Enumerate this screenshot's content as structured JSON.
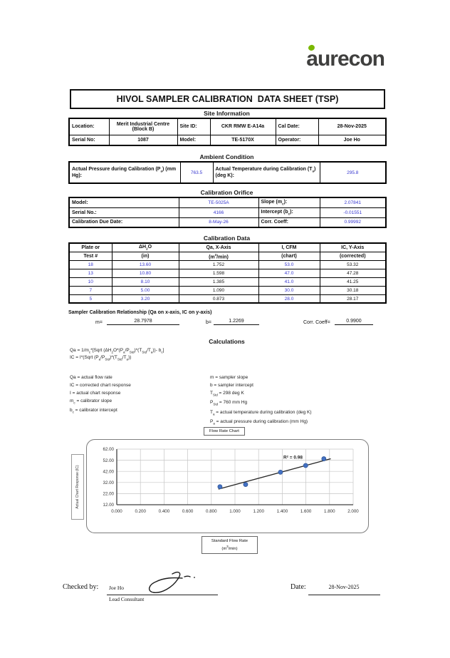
{
  "logo": {
    "text": "aurecon",
    "text_color": "#3f3f3e",
    "dot_color": "#7ab800"
  },
  "title": "HIVOL SAMPLER CALIBRATION  DATA SHEET (TSP)",
  "site_information": {
    "heading": "Site Information",
    "rows": [
      [
        "Location:",
        "Merit Industrial Centre (Block B)",
        "Site ID:",
        "CKR RMW E-A14a",
        "Cal Date:",
        "28-Nov-2025"
      ],
      [
        "Serial No:",
        "1087",
        "Model:",
        "TE-5170X",
        "Operator:",
        "Joe Ho"
      ]
    ]
  },
  "ambient_condition": {
    "heading": "Ambient Condition",
    "pressure_label_html": "Actual Pressure during Calibration (P<sub>a</sub>) (mm Hg):",
    "pressure_value": "763.5",
    "temperature_label_html": "Actual Temperature during Calibration (T<sub>a</sub>) (deg K):",
    "temperature_value": "295.8"
  },
  "calibration_orifice": {
    "heading": "Calibration Orifice",
    "rows": [
      {
        "label1": "Model:",
        "value1": "TE-5025A",
        "label2_html": "Slope (m<sub>c</sub>):",
        "value2": "2.07841"
      },
      {
        "label1": "Serial No.:",
        "value1": "4166",
        "label2_html": "Intercept (b<sub>c</sub>):",
        "value2": "-0.01551"
      },
      {
        "label1": "Calibration Due Date:",
        "value1": "8-May-26",
        "label2_html": "Corr. Coeff:",
        "value2": "0.99992"
      }
    ]
  },
  "calibration_data": {
    "heading": "Calibration Data",
    "header_line1_html": [
      "Plate or",
      "ΔH<sub>2</sub>O",
      "Qa, X-Axis",
      "I, CFM",
      "IC, Y-Axis"
    ],
    "header_line2_html": [
      "Test #",
      "(in)",
      "(m<sup>3</sup>/min)",
      "(chart)",
      "(corrected)"
    ],
    "rows": [
      [
        "18",
        "13.60",
        "1.752",
        "53.0",
        "53.32"
      ],
      [
        "13",
        "10.80",
        "1.598",
        "47.0",
        "47.28"
      ],
      [
        "10",
        "8.10",
        "1.385",
        "41.0",
        "41.25"
      ],
      [
        "7",
        "5.00",
        "1.090",
        "30.0",
        "30.18"
      ],
      [
        "5",
        "3.20",
        "0.873",
        "28.0",
        "28.17"
      ]
    ]
  },
  "relationship": {
    "heading": "Sampler Calibration Relationship (Qa on x-axis, IC on y-axis)",
    "m_label": "m=",
    "m_value": "28.7978",
    "b_label": "b=",
    "b_value": "1.2269",
    "cc_label": "Corr. Coeff=",
    "cc_value": "0.9900"
  },
  "calculations": {
    "heading": "Calculations",
    "formula1_html": "Qa = 1/m<sub>c</sub>*[Sqrt (ΔH<sub>2</sub>O*(P<sub>a</sub>/P<sub>Std</sub>)*(T<sub>Std</sub>/T<sub>a</sub>))- b<sub>c</sub>]",
    "formula2_html": "IC = I*(Sqrt (P<sub>a</sub>/P<sub>Std</sub>)*(T<sub>Std</sub>/T<sub>a</sub>))",
    "definitions_left_html": [
      "Qa = actual flow rate",
      "IC = corrected chart response",
      "I = actual chart response",
      "m<sub>c</sub> = calibrator slope",
      "b<sub>c</sub> = calibrator intercept"
    ],
    "definitions_right_html": [
      "m = sampler slope",
      "b = sampler intercept",
      "T<sub>Std</sub> = 298 deg K",
      "P<sub>Std</sub> = 760 mm Hg",
      "T<sub>a</sub> = actual temperature during calibration (deg K)",
      "P<sub>a</sub> = actual pressure during calibration (mm Hg)"
    ]
  },
  "chart": {
    "button_label": "Flow Rate Chart",
    "y_axis_label": "Actual Chart Response (IC)",
    "x_axis_label_line1": "Standard Flow Rate",
    "x_axis_label_line2_html": "(m<sup>3</sup>/min)"
  },
  "chart_data": {
    "type": "scatter",
    "title": "Flow Rate Chart",
    "xlabel": "Standard Flow Rate (m3/min)",
    "ylabel": "Actual Chart Response (IC)",
    "points": [
      {
        "x": 0.873,
        "y": 28.17
      },
      {
        "x": 1.09,
        "y": 30.18
      },
      {
        "x": 1.385,
        "y": 41.25
      },
      {
        "x": 1.598,
        "y": 47.28
      },
      {
        "x": 1.752,
        "y": 53.32
      }
    ],
    "trendline": {
      "slope": 28.7978,
      "intercept": 1.2269,
      "x_start": 0.86,
      "x_end": 1.81,
      "r_squared": 0.98
    },
    "annotation": "R² = 0.98",
    "annotation_pos": {
      "x": 1.41,
      "y": 53.5
    },
    "xlim": [
      0,
      2
    ],
    "ylim": [
      12,
      62
    ],
    "x_ticks": [
      "0.000",
      "0.200",
      "0.400",
      "0.600",
      "0.800",
      "1.000",
      "1.200",
      "1.400",
      "1.600",
      "1.800",
      "2.000"
    ],
    "y_ticks": [
      "12.00",
      "22.00",
      "32.00",
      "42.00",
      "52.00",
      "62.00"
    ],
    "grid": true,
    "legend": "none",
    "grid_color": "#c6c6c6",
    "point_color": "#4472c4",
    "point_stroke": "#2f5597",
    "line_color": "#262626"
  },
  "footer": {
    "checked_by_label": "Checked by:",
    "checked_by_name": "Joe Ho",
    "checked_by_title": "Lead Consultant",
    "date_label": "Date:",
    "date_value": "28-Nov-2025"
  }
}
